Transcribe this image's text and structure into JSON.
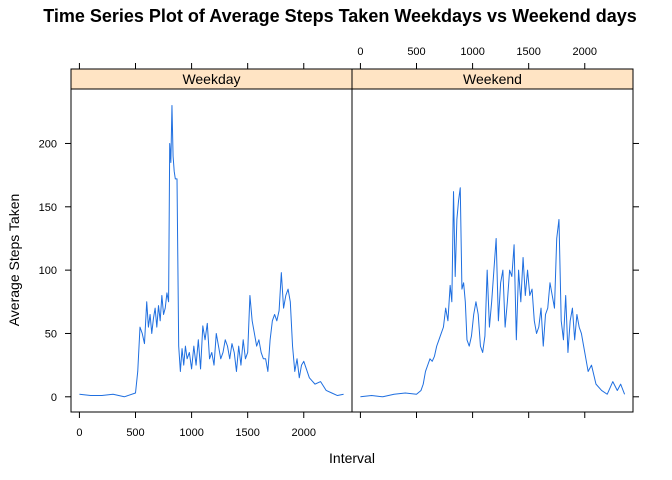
{
  "chart_data": {
    "type": "line",
    "title": "Time Series Plot of Average Steps Taken Weekdays vs Weekend days",
    "xlabel": "Interval",
    "ylabel": "Average Steps Taken",
    "xlim": [
      -75,
      2430
    ],
    "ylim": [
      -12,
      243
    ],
    "x_ticks": [
      0,
      500,
      1000,
      1500,
      2000
    ],
    "y_ticks": [
      0,
      50,
      100,
      150,
      200
    ],
    "grid": false,
    "line_color": "#1f6fe0",
    "strip_color": "#ffe4c4",
    "panels": [
      {
        "name": "Weekday",
        "x": [
          0,
          100,
          200,
          300,
          400,
          500,
          520,
          540,
          560,
          580,
          600,
          615,
          630,
          645,
          660,
          675,
          690,
          705,
          720,
          735,
          750,
          765,
          780,
          795,
          805,
          815,
          825,
          835,
          845,
          855,
          870,
          885,
          900,
          915,
          930,
          945,
          960,
          980,
          1000,
          1020,
          1040,
          1060,
          1080,
          1100,
          1120,
          1140,
          1160,
          1180,
          1200,
          1220,
          1240,
          1260,
          1280,
          1300,
          1320,
          1340,
          1360,
          1380,
          1400,
          1420,
          1440,
          1460,
          1480,
          1500,
          1520,
          1540,
          1560,
          1580,
          1600,
          1620,
          1640,
          1660,
          1680,
          1700,
          1720,
          1740,
          1760,
          1780,
          1800,
          1820,
          1840,
          1860,
          1880,
          1900,
          1920,
          1940,
          1960,
          1980,
          2000,
          2050,
          2100,
          2150,
          2200,
          2250,
          2300,
          2355
        ],
        "y": [
          2,
          1,
          1,
          2,
          0,
          3,
          20,
          55,
          50,
          42,
          75,
          55,
          65,
          50,
          62,
          70,
          55,
          72,
          60,
          80,
          65,
          70,
          82,
          75,
          200,
          185,
          230,
          190,
          178,
          172,
          172,
          40,
          20,
          38,
          25,
          40,
          30,
          35,
          22,
          40,
          25,
          45,
          22,
          56,
          45,
          58,
          30,
          35,
          25,
          50,
          40,
          30,
          35,
          45,
          40,
          30,
          42,
          35,
          20,
          40,
          25,
          45,
          30,
          35,
          80,
          60,
          50,
          40,
          45,
          35,
          30,
          30,
          20,
          45,
          60,
          65,
          60,
          68,
          98,
          70,
          80,
          85,
          75,
          40,
          20,
          30,
          15,
          25,
          28,
          15,
          10,
          12,
          5,
          3,
          1,
          2
        ],
        "x_tick_labels_position": "bottom"
      },
      {
        "name": "Weekend",
        "x": [
          0,
          100,
          200,
          300,
          400,
          500,
          540,
          560,
          580,
          600,
          620,
          640,
          660,
          680,
          700,
          720,
          740,
          760,
          780,
          800,
          815,
          830,
          845,
          860,
          875,
          890,
          905,
          920,
          935,
          950,
          970,
          990,
          1010,
          1030,
          1050,
          1070,
          1090,
          1110,
          1130,
          1150,
          1170,
          1190,
          1210,
          1230,
          1250,
          1270,
          1290,
          1310,
          1330,
          1350,
          1370,
          1390,
          1410,
          1430,
          1450,
          1470,
          1490,
          1510,
          1530,
          1550,
          1570,
          1590,
          1610,
          1630,
          1650,
          1670,
          1690,
          1710,
          1730,
          1750,
          1770,
          1790,
          1810,
          1830,
          1850,
          1870,
          1890,
          1910,
          1930,
          1950,
          1970,
          1990,
          2010,
          2030,
          2060,
          2100,
          2150,
          2200,
          2250,
          2290,
          2320,
          2355
        ],
        "y": [
          0,
          1,
          0,
          2,
          3,
          2,
          5,
          10,
          20,
          25,
          30,
          28,
          32,
          40,
          45,
          50,
          55,
          70,
          60,
          88,
          75,
          162,
          95,
          140,
          155,
          165,
          85,
          90,
          75,
          45,
          40,
          48,
          65,
          75,
          65,
          40,
          35,
          48,
          100,
          55,
          75,
          100,
          125,
          60,
          90,
          100,
          55,
          75,
          100,
          95,
          120,
          45,
          100,
          75,
          110,
          80,
          100,
          80,
          85,
          60,
          50,
          55,
          70,
          40,
          65,
          70,
          90,
          80,
          70,
          125,
          140,
          60,
          45,
          80,
          35,
          60,
          70,
          45,
          65,
          55,
          50,
          40,
          30,
          20,
          25,
          10,
          5,
          2,
          12,
          5,
          10,
          2
        ],
        "x_tick_labels_position": "top"
      }
    ]
  }
}
